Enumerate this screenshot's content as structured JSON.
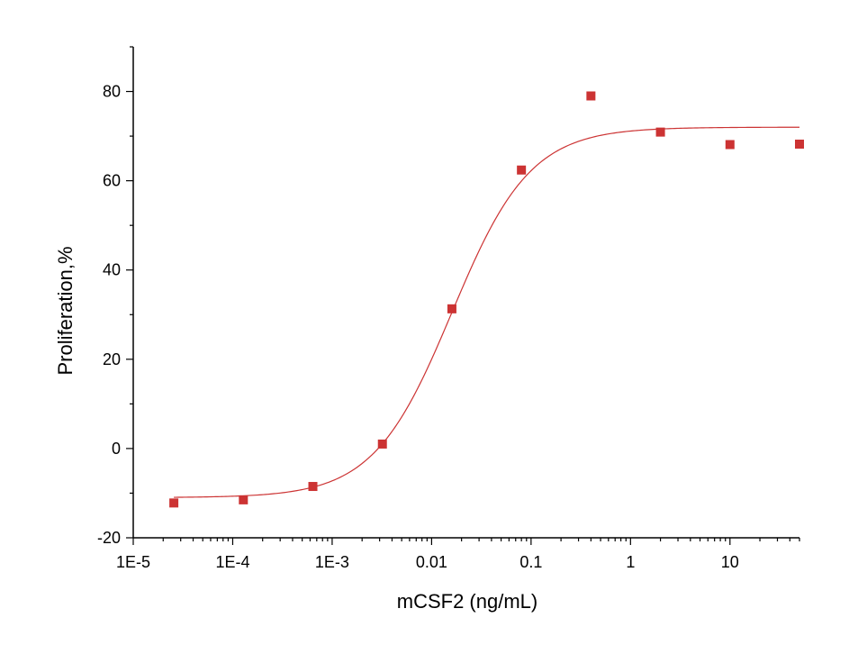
{
  "chart_data": {
    "type": "scatter",
    "title": "",
    "xlabel": "mCSF2 (ng/mL)",
    "ylabel": "Proliferation,%",
    "x_scale": "log",
    "xlim": [
      1e-05,
      50
    ],
    "ylim": [
      -20,
      90
    ],
    "grid": false,
    "legend": "none",
    "x_ticks": [
      {
        "value": 1e-05,
        "label": "1E-5"
      },
      {
        "value": 0.0001,
        "label": "1E-4"
      },
      {
        "value": 0.001,
        "label": "1E-3"
      },
      {
        "value": 0.01,
        "label": "0.01"
      },
      {
        "value": 0.1,
        "label": "0.1"
      },
      {
        "value": 1,
        "label": "1"
      },
      {
        "value": 10,
        "label": "10"
      }
    ],
    "y_ticks": [
      {
        "value": -20,
        "label": "-20"
      },
      {
        "value": 0,
        "label": "0"
      },
      {
        "value": 20,
        "label": "20"
      },
      {
        "value": 40,
        "label": "40"
      },
      {
        "value": 60,
        "label": "60"
      },
      {
        "value": 80,
        "label": "80"
      }
    ],
    "series": [
      {
        "marker": "square",
        "color": "#cc3333",
        "points": [
          {
            "x": 2.56e-05,
            "y": -12.2
          },
          {
            "x": 0.000128,
            "y": -11.5
          },
          {
            "x": 0.00064,
            "y": -8.5
          },
          {
            "x": 0.0032,
            "y": 1.0
          },
          {
            "x": 0.016,
            "y": 31.3
          },
          {
            "x": 0.08,
            "y": 62.4
          },
          {
            "x": 0.4,
            "y": 79.0
          },
          {
            "x": 2.0,
            "y": 70.9
          },
          {
            "x": 10.0,
            "y": 68.1
          },
          {
            "x": 50.0,
            "y": 68.2
          }
        ]
      }
    ],
    "fit_curve": {
      "type": "four-parameter logistic",
      "color": "#cc3333",
      "bottom": -11.0,
      "top": 72.0,
      "ec50": 0.016,
      "hill_slope": 1.1
    }
  }
}
